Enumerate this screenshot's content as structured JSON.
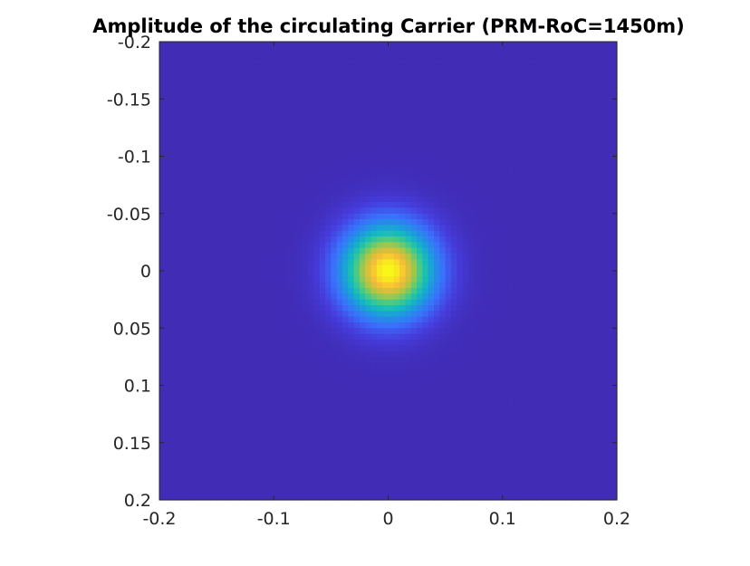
{
  "chart_data": {
    "type": "heatmap",
    "title": "Amplitude of the circulating Carrier (PRM-RoC=1450m)",
    "xlabel": "",
    "ylabel": "",
    "xlim": [
      -0.2,
      0.2
    ],
    "ylim": [
      -0.2,
      0.2
    ],
    "y_direction": "reverse",
    "x_ticks": [
      -0.2,
      -0.1,
      0,
      0.1,
      0.2
    ],
    "x_tick_labels": [
      "-0.2",
      "-0.1",
      "0",
      "0.1",
      "0.2"
    ],
    "y_ticks": [
      -0.2,
      -0.15,
      -0.1,
      -0.05,
      0,
      0.05,
      0.1,
      0.15,
      0.2
    ],
    "y_tick_labels": [
      "-0.2",
      "-0.15",
      "-0.1",
      "-0.05",
      "0",
      "0.05",
      "0.1",
      "0.15",
      "0.2"
    ],
    "colormap": "parula",
    "aspect": "equal",
    "field": {
      "shape": "gaussian",
      "center": [
        0,
        0
      ],
      "peak_normalized": 1.0,
      "half_max_radius": 0.033,
      "background_level_normalized": 0.03
    },
    "colors": {
      "low": "#3e26a8",
      "mid": "#13bcbc",
      "high": "#f9fb15"
    }
  }
}
